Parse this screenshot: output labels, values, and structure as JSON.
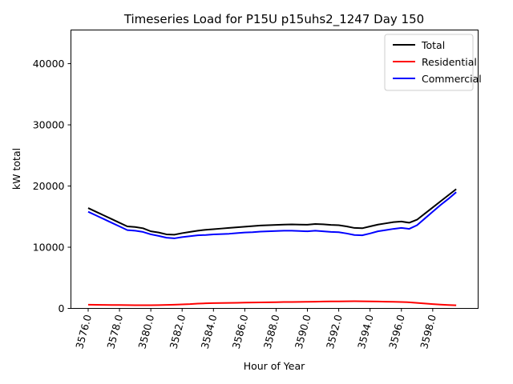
{
  "chart_data": {
    "type": "line",
    "title": "Timeseries Load for P15U p15uhs2_1247  Day 150",
    "xlabel": "Hour of Year",
    "ylabel": "kW total",
    "xlim": [
      3574.9,
      3600.9
    ],
    "ylim": [
      0,
      45500
    ],
    "xticks": [
      3576.0,
      3578.0,
      3580.0,
      3582.0,
      3584.0,
      3586.0,
      3588.0,
      3590.0,
      3592.0,
      3594.0,
      3596.0,
      3598.0
    ],
    "xtick_labels": [
      "3576.0",
      "3578.0",
      "3580.0",
      "3582.0",
      "3584.0",
      "3586.0",
      "3588.0",
      "3590.0",
      "3592.0",
      "3594.0",
      "3596.0",
      "3598.0"
    ],
    "yticks": [
      0,
      10000,
      20000,
      30000,
      40000
    ],
    "ytick_labels": [
      "0",
      "10000",
      "20000",
      "30000",
      "40000"
    ],
    "grid": false,
    "legend_position": "top-right",
    "x": [
      3576,
      3576.5,
      3577,
      3577.5,
      3578,
      3578.5,
      3579,
      3579.5,
      3580,
      3580.5,
      3581,
      3581.5,
      3582,
      3582.5,
      3583,
      3583.5,
      3584,
      3584.5,
      3585,
      3585.5,
      3586,
      3586.5,
      3587,
      3587.5,
      3588,
      3588.5,
      3589,
      3589.5,
      3590,
      3590.5,
      3591,
      3591.5,
      3592,
      3592.5,
      3593,
      3593.5,
      3594,
      3594.5,
      3595,
      3595.5,
      3596,
      3596.5,
      3597,
      3597.5,
      3598,
      3598.5,
      3599,
      3599.5
    ],
    "series": [
      {
        "name": "Total",
        "color": "#000000",
        "values": [
          16400,
          15800,
          15200,
          14600,
          14000,
          13400,
          13300,
          13100,
          12600,
          12400,
          12100,
          12050,
          12300,
          12500,
          12700,
          12850,
          12950,
          13050,
          13150,
          13250,
          13350,
          13450,
          13550,
          13600,
          13650,
          13700,
          13720,
          13700,
          13680,
          13800,
          13750,
          13650,
          13600,
          13400,
          13150,
          13100,
          13400,
          13700,
          13900,
          14100,
          14200,
          14000,
          14500,
          15500,
          16500,
          17500,
          18500,
          19500
        ]
      },
      {
        "name": "Residential",
        "color": "#ff0000",
        "values": [
          600,
          580,
          570,
          560,
          550,
          540,
          530,
          520,
          520,
          540,
          570,
          600,
          650,
          700,
          780,
          830,
          860,
          880,
          900,
          920,
          940,
          960,
          980,
          1000,
          1020,
          1040,
          1050,
          1060,
          1080,
          1100,
          1120,
          1140,
          1150,
          1160,
          1170,
          1160,
          1140,
          1120,
          1100,
          1080,
          1050,
          1000,
          900,
          800,
          700,
          620,
          560,
          500
        ]
      },
      {
        "name": "Commercial",
        "color": "#0000ff",
        "values": [
          15800,
          15200,
          14600,
          14000,
          13400,
          12800,
          12700,
          12500,
          12100,
          11850,
          11550,
          11450,
          11650,
          11800,
          11950,
          12000,
          12100,
          12150,
          12200,
          12300,
          12400,
          12450,
          12550,
          12600,
          12650,
          12700,
          12700,
          12650,
          12600,
          12700,
          12600,
          12500,
          12450,
          12250,
          12000,
          11950,
          12250,
          12600,
          12800,
          13000,
          13150,
          13000,
          13600,
          14700,
          15800,
          16900,
          17900,
          19000
        ]
      }
    ]
  }
}
